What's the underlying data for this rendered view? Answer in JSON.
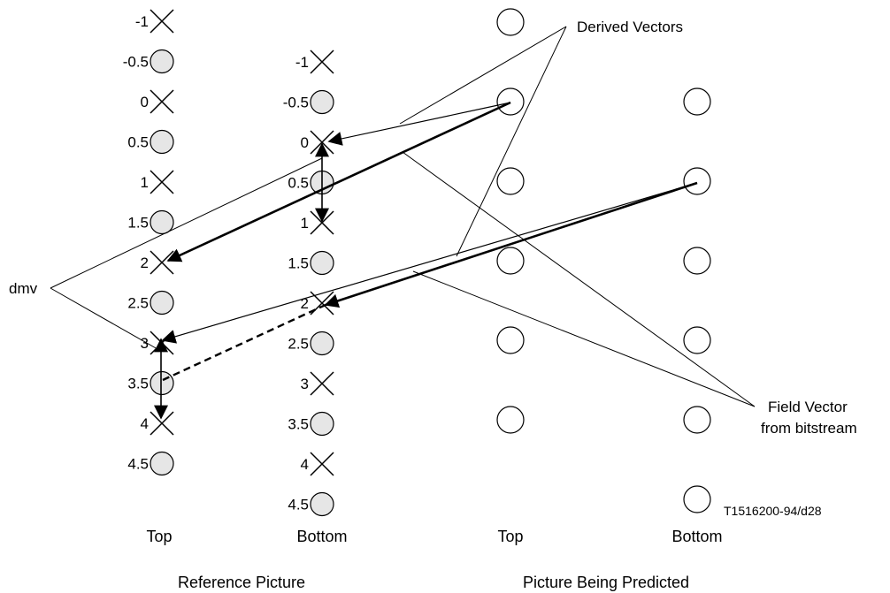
{
  "figure_id": "T1516200-94/d28",
  "reference_picture": {
    "title": "Reference Picture",
    "top": {
      "label": "Top",
      "samples": [
        {
          "v": "-1",
          "kind": "cross"
        },
        {
          "v": "-0.5",
          "kind": "circle"
        },
        {
          "v": "0",
          "kind": "cross"
        },
        {
          "v": "0.5",
          "kind": "circle"
        },
        {
          "v": "1",
          "kind": "cross"
        },
        {
          "v": "1.5",
          "kind": "circle"
        },
        {
          "v": "2",
          "kind": "cross"
        },
        {
          "v": "2.5",
          "kind": "circle"
        },
        {
          "v": "3",
          "kind": "cross"
        },
        {
          "v": "3.5",
          "kind": "circle"
        },
        {
          "v": "4",
          "kind": "cross"
        },
        {
          "v": "4.5",
          "kind": "circle"
        }
      ]
    },
    "bottom": {
      "label": "Bottom",
      "samples": [
        {
          "v": "-1",
          "kind": "cross"
        },
        {
          "v": "-0.5",
          "kind": "circle"
        },
        {
          "v": "0",
          "kind": "cross"
        },
        {
          "v": "0.5",
          "kind": "circle"
        },
        {
          "v": "1",
          "kind": "cross"
        },
        {
          "v": "1.5",
          "kind": "circle"
        },
        {
          "v": "2",
          "kind": "cross"
        },
        {
          "v": "2.5",
          "kind": "circle"
        },
        {
          "v": "3",
          "kind": "cross"
        },
        {
          "v": "3.5",
          "kind": "circle"
        },
        {
          "v": "4",
          "kind": "cross"
        },
        {
          "v": "4.5",
          "kind": "circle"
        }
      ]
    }
  },
  "predicted_picture": {
    "title": "Picture Being Predicted",
    "top_label": "Top",
    "bottom_label": "Bottom"
  },
  "annotations": {
    "derived_vectors": "Derived Vectors",
    "field_vector_line1": "Field Vector",
    "field_vector_line2": "from bitstream",
    "dmv": "dmv"
  }
}
